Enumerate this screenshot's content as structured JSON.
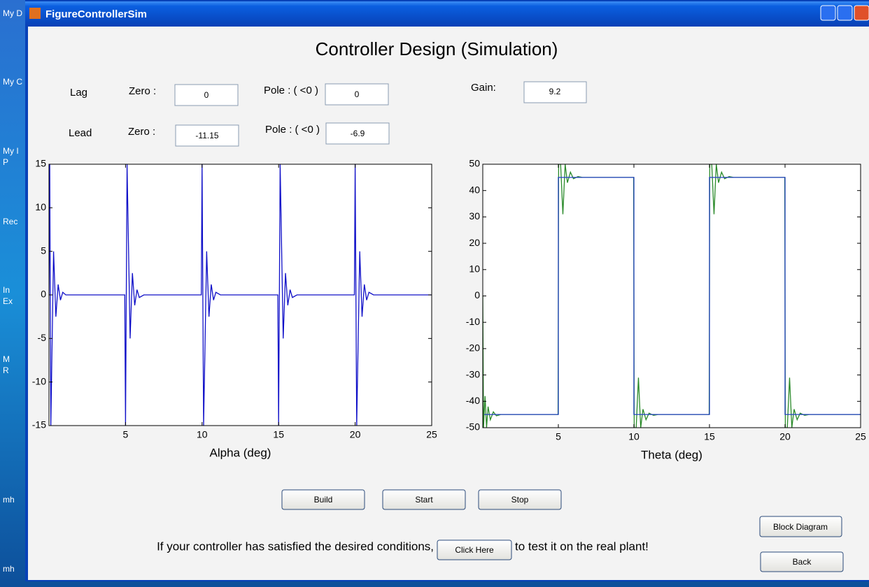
{
  "desktop": {
    "icons": [
      "My D",
      "My C",
      "My I",
      "P",
      "Rec",
      "In",
      "Ex",
      "M",
      "R",
      "mh",
      "mh"
    ]
  },
  "window": {
    "title": "FigureControllerSim"
  },
  "heading": "Controller Design (Simulation)",
  "lag": {
    "label": "Lag",
    "zero_label": "Zero :",
    "zero": "0",
    "pole_label": "Pole : ( <0 )",
    "pole": "0"
  },
  "lead": {
    "label": "Lead",
    "zero_label": "Zero :",
    "zero": "-11.15",
    "pole_label": "Pole : ( <0 )",
    "pole": "-6.9"
  },
  "gain": {
    "label": "Gain:",
    "value": "9.2"
  },
  "plots": [
    {
      "xlabel": "Alpha (deg)",
      "xlim": [
        0,
        25
      ],
      "ylim": [
        -15,
        15
      ],
      "xticks": [
        5,
        10,
        15,
        20,
        25
      ],
      "yticks": [
        -15,
        -10,
        -5,
        0,
        5,
        10,
        15
      ],
      "series": [
        {
          "color": "#1010c8",
          "x": [
            0,
            0.05,
            0.12,
            0.3,
            0.45,
            0.6,
            0.75,
            0.9,
            1.1,
            2.5,
            4.95,
            5.0,
            5.1,
            5.3,
            5.45,
            5.6,
            5.75,
            5.9,
            6.2,
            9.95,
            10.0,
            10.1,
            10.3,
            10.45,
            10.6,
            10.75,
            10.9,
            11.2,
            14.95,
            15.0,
            15.1,
            15.3,
            15.45,
            15.6,
            15.75,
            15.9,
            16.2,
            19.95,
            20.0,
            20.1,
            20.3,
            20.45,
            20.6,
            20.75,
            20.9,
            21.2,
            25
          ],
          "y": [
            0,
            15,
            -15,
            5,
            -2.5,
            1.2,
            -0.6,
            0.3,
            0,
            0,
            0,
            -15,
            15,
            -5,
            2.5,
            -1.2,
            0.6,
            -0.3,
            0,
            0,
            15,
            -15,
            5,
            -2.5,
            1.2,
            -0.6,
            0.3,
            0,
            0,
            -15,
            15,
            -5,
            2.5,
            -1.2,
            0.6,
            -0.3,
            0,
            0,
            15,
            -15,
            5,
            -2.5,
            1.2,
            -0.6,
            0.3,
            0,
            0
          ]
        }
      ]
    },
    {
      "xlabel": "Theta (deg)",
      "xlim": [
        0,
        25
      ],
      "ylim": [
        -50,
        50
      ],
      "xticks": [
        5,
        10,
        15,
        20,
        25
      ],
      "yticks": [
        -50,
        -40,
        -30,
        -20,
        -10,
        0,
        10,
        20,
        30,
        40,
        50
      ],
      "series": [
        {
          "color": "#2a8a2a",
          "x": [
            0,
            0.05,
            0.15,
            0.25,
            0.35,
            0.5,
            0.7,
            0.9,
            1.2,
            4.98,
            5.02,
            5.15,
            5.3,
            5.45,
            5.6,
            5.8,
            6.0,
            6.3,
            6.6,
            9.98,
            10.02,
            10.15,
            10.3,
            10.45,
            10.6,
            10.8,
            11.0,
            11.3,
            11.6,
            14.98,
            15.02,
            15.15,
            15.3,
            15.45,
            15.6,
            15.8,
            16.0,
            16.3,
            16.6,
            19.98,
            20.02,
            20.15,
            20.3,
            20.45,
            20.6,
            20.8,
            21.0,
            21.3,
            21.6,
            25
          ],
          "y": [
            0,
            -50,
            -38,
            -50,
            -42,
            -47,
            -44,
            -45.5,
            -45,
            -45,
            50,
            50,
            31,
            50,
            43,
            47,
            44.5,
            45.3,
            45,
            45,
            -50,
            -50,
            -31,
            -50,
            -43,
            -47,
            -44.5,
            -45.3,
            -45,
            -45,
            50,
            50,
            31,
            50,
            43,
            47,
            44.5,
            45.3,
            45,
            45,
            -50,
            -50,
            -31,
            -50,
            -43,
            -47,
            -44.5,
            -45.3,
            -45,
            -45
          ]
        },
        {
          "color": "#2040c0",
          "x": [
            0.1,
            5,
            5,
            10,
            10,
            15,
            15,
            20,
            20,
            25
          ],
          "y": [
            -45,
            -45,
            45,
            45,
            -45,
            -45,
            45,
            45,
            -45,
            -45
          ]
        }
      ]
    }
  ],
  "buttons": {
    "build": "Build",
    "start": "Start",
    "stop": "Stop",
    "block_diagram": "Block Diagram",
    "back": "Back",
    "click_here": "Click Here"
  },
  "message": {
    "before": "If your controller has satisfied the desired conditions,",
    "after": "to test it on the real plant!"
  }
}
